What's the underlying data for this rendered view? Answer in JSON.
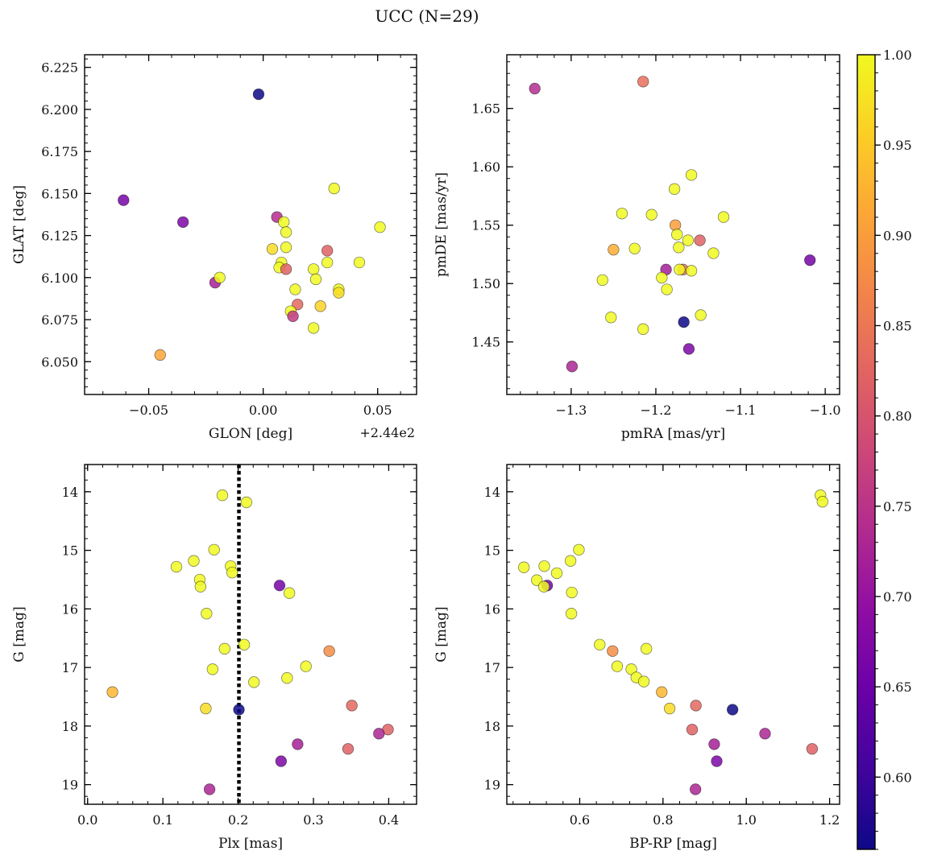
{
  "figure": {
    "title": "UCC (N=29)"
  },
  "chart_data": [
    {
      "type": "scatter",
      "panel": "top-left",
      "title": "",
      "xlabel": "GLON [deg]",
      "ylabel": "GLAT [deg]",
      "x_offset_label": "+2.44e2",
      "x_offset": 244.0,
      "xlim": [
        -0.078,
        0.067
      ],
      "ylim": [
        6.0305,
        6.2325
      ],
      "xticks": [
        -0.05,
        0.0,
        0.05
      ],
      "xtick_labels": [
        "−0.05",
        "0.00",
        "0.05"
      ],
      "yticks": [
        6.05,
        6.075,
        6.1,
        6.125,
        6.15,
        6.175,
        6.2,
        6.225
      ],
      "ytick_labels": [
        "6.050",
        "6.075",
        "6.100",
        "6.125",
        "6.150",
        "6.175",
        "6.200",
        "6.225"
      ],
      "y_inverted": false,
      "points": [
        {
          "x": -0.002,
          "y": 6.209,
          "c": 0.56
        },
        {
          "x": -0.061,
          "y": 6.146,
          "c": 0.66
        },
        {
          "x": -0.035,
          "y": 6.133,
          "c": 0.67
        },
        {
          "x": -0.021,
          "y": 6.097,
          "c": 0.72
        },
        {
          "x": -0.019,
          "y": 6.1,
          "c": 1.0
        },
        {
          "x": -0.045,
          "y": 6.054,
          "c": 0.91
        },
        {
          "x": 0.006,
          "y": 6.136,
          "c": 0.74
        },
        {
          "x": 0.009,
          "y": 6.133,
          "c": 1.0
        },
        {
          "x": 0.01,
          "y": 6.127,
          "c": 1.0
        },
        {
          "x": 0.004,
          "y": 6.117,
          "c": 0.97
        },
        {
          "x": 0.01,
          "y": 6.118,
          "c": 1.0
        },
        {
          "x": 0.008,
          "y": 6.109,
          "c": 1.0
        },
        {
          "x": 0.007,
          "y": 6.106,
          "c": 1.0
        },
        {
          "x": 0.01,
          "y": 6.105,
          "c": 0.82
        },
        {
          "x": 0.014,
          "y": 6.093,
          "c": 1.0
        },
        {
          "x": 0.015,
          "y": 6.084,
          "c": 0.83
        },
        {
          "x": 0.012,
          "y": 6.08,
          "c": 1.0
        },
        {
          "x": 0.013,
          "y": 6.077,
          "c": 0.76
        },
        {
          "x": 0.022,
          "y": 6.105,
          "c": 1.0
        },
        {
          "x": 0.023,
          "y": 6.099,
          "c": 1.0
        },
        {
          "x": 0.025,
          "y": 6.083,
          "c": 0.96
        },
        {
          "x": 0.022,
          "y": 6.07,
          "c": 1.0
        },
        {
          "x": 0.028,
          "y": 6.116,
          "c": 0.82
        },
        {
          "x": 0.028,
          "y": 6.109,
          "c": 1.0
        },
        {
          "x": 0.031,
          "y": 6.153,
          "c": 1.0
        },
        {
          "x": 0.033,
          "y": 6.093,
          "c": 1.0
        },
        {
          "x": 0.033,
          "y": 6.091,
          "c": 0.97
        },
        {
          "x": 0.042,
          "y": 6.109,
          "c": 1.0
        },
        {
          "x": 0.051,
          "y": 6.13,
          "c": 1.0
        }
      ]
    },
    {
      "type": "scatter",
      "panel": "top-right",
      "title": "",
      "xlabel": "pmRA [mas/yr]",
      "ylabel": "pmDE [mas/yr]",
      "xlim": [
        -1.376,
        -0.983
      ],
      "ylim": [
        1.405,
        1.696
      ],
      "xticks": [
        -1.3,
        -1.2,
        -1.1,
        -1.0
      ],
      "xtick_labels": [
        "−1.3",
        "−1.2",
        "−1.1",
        "−1.0"
      ],
      "yticks": [
        1.45,
        1.5,
        1.55,
        1.6,
        1.65
      ],
      "ytick_labels": [
        "1.45",
        "1.50",
        "1.55",
        "1.60",
        "1.65"
      ],
      "y_inverted": false,
      "points": [
        {
          "x": -1.343,
          "y": 1.667,
          "c": 0.74
        },
        {
          "x": -1.215,
          "y": 1.673,
          "c": 0.84
        },
        {
          "x": -1.158,
          "y": 1.593,
          "c": 1.0
        },
        {
          "x": -1.178,
          "y": 1.581,
          "c": 1.0
        },
        {
          "x": -1.24,
          "y": 1.56,
          "c": 1.0
        },
        {
          "x": -1.205,
          "y": 1.559,
          "c": 1.0
        },
        {
          "x": -1.12,
          "y": 1.557,
          "c": 1.0
        },
        {
          "x": -1.177,
          "y": 1.55,
          "c": 0.9
        },
        {
          "x": -1.175,
          "y": 1.542,
          "c": 1.0
        },
        {
          "x": -1.162,
          "y": 1.537,
          "c": 1.0
        },
        {
          "x": -1.148,
          "y": 1.537,
          "c": 0.82
        },
        {
          "x": -1.173,
          "y": 1.531,
          "c": 1.0
        },
        {
          "x": -1.225,
          "y": 1.53,
          "c": 1.0
        },
        {
          "x": -1.25,
          "y": 1.529,
          "c": 0.92
        },
        {
          "x": -1.132,
          "y": 1.526,
          "c": 1.0
        },
        {
          "x": -1.188,
          "y": 1.512,
          "c": 0.72
        },
        {
          "x": -1.168,
          "y": 1.512,
          "c": 0.84
        },
        {
          "x": -1.172,
          "y": 1.512,
          "c": 1.0
        },
        {
          "x": -1.158,
          "y": 1.511,
          "c": 1.0
        },
        {
          "x": -1.193,
          "y": 1.505,
          "c": 1.0
        },
        {
          "x": -1.263,
          "y": 1.503,
          "c": 1.0
        },
        {
          "x": -1.187,
          "y": 1.495,
          "c": 1.0
        },
        {
          "x": -1.018,
          "y": 1.52,
          "c": 0.66
        },
        {
          "x": -1.147,
          "y": 1.473,
          "c": 1.0
        },
        {
          "x": -1.253,
          "y": 1.471,
          "c": 1.0
        },
        {
          "x": -1.167,
          "y": 1.467,
          "c": 0.56
        },
        {
          "x": -1.215,
          "y": 1.461,
          "c": 1.0
        },
        {
          "x": -1.161,
          "y": 1.444,
          "c": 0.67
        },
        {
          "x": -1.299,
          "y": 1.429,
          "c": 0.73
        }
      ]
    },
    {
      "type": "scatter",
      "panel": "bottom-left",
      "title": "",
      "xlabel": "Plx [mas]",
      "ylabel": "G [mag]",
      "xlim": [
        -0.004,
        0.437
      ],
      "ylim": [
        19.335,
        13.535
      ],
      "xticks": [
        0.0,
        0.1,
        0.2,
        0.3,
        0.4
      ],
      "xtick_labels": [
        "0.0",
        "0.1",
        "0.2",
        "0.3",
        "0.4"
      ],
      "yticks": [
        14,
        15,
        16,
        17,
        18,
        19
      ],
      "ytick_labels": [
        "14",
        "15",
        "16",
        "17",
        "18",
        "19"
      ],
      "y_inverted": true,
      "vline": {
        "x": 0.201,
        "style": "dotted",
        "color": "#000000"
      },
      "points": [
        {
          "x": 0.179,
          "y": 14.06,
          "c": 1.0
        },
        {
          "x": 0.211,
          "y": 14.18,
          "c": 1.0
        },
        {
          "x": 0.168,
          "y": 14.99,
          "c": 1.0
        },
        {
          "x": 0.141,
          "y": 15.18,
          "c": 1.0
        },
        {
          "x": 0.118,
          "y": 15.28,
          "c": 1.0
        },
        {
          "x": 0.19,
          "y": 15.27,
          "c": 1.0
        },
        {
          "x": 0.192,
          "y": 15.38,
          "c": 1.0
        },
        {
          "x": 0.149,
          "y": 15.5,
          "c": 1.0
        },
        {
          "x": 0.15,
          "y": 15.62,
          "c": 1.0
        },
        {
          "x": 0.255,
          "y": 15.6,
          "c": 0.66
        },
        {
          "x": 0.268,
          "y": 15.73,
          "c": 1.0
        },
        {
          "x": 0.158,
          "y": 16.08,
          "c": 1.0
        },
        {
          "x": 0.208,
          "y": 16.61,
          "c": 1.0
        },
        {
          "x": 0.182,
          "y": 16.68,
          "c": 1.0
        },
        {
          "x": 0.321,
          "y": 16.72,
          "c": 0.88
        },
        {
          "x": 0.29,
          "y": 16.98,
          "c": 1.0
        },
        {
          "x": 0.166,
          "y": 17.03,
          "c": 1.0
        },
        {
          "x": 0.265,
          "y": 17.18,
          "c": 1.0
        },
        {
          "x": 0.221,
          "y": 17.25,
          "c": 1.0
        },
        {
          "x": 0.033,
          "y": 17.42,
          "c": 0.93
        },
        {
          "x": 0.351,
          "y": 17.65,
          "c": 0.83
        },
        {
          "x": 0.157,
          "y": 17.7,
          "c": 0.97
        },
        {
          "x": 0.201,
          "y": 17.72,
          "c": 0.56
        },
        {
          "x": 0.399,
          "y": 18.06,
          "c": 0.82
        },
        {
          "x": 0.387,
          "y": 18.13,
          "c": 0.73
        },
        {
          "x": 0.279,
          "y": 18.31,
          "c": 0.72
        },
        {
          "x": 0.346,
          "y": 18.39,
          "c": 0.82
        },
        {
          "x": 0.257,
          "y": 18.6,
          "c": 0.67
        },
        {
          "x": 0.162,
          "y": 19.08,
          "c": 0.73
        }
      ]
    },
    {
      "type": "scatter",
      "panel": "bottom-right",
      "title": "",
      "xlabel": "BP-RP [mag]",
      "ylabel": "G [mag]",
      "xlim": [
        0.425,
        1.224
      ],
      "ylim": [
        19.335,
        13.535
      ],
      "xticks": [
        0.6,
        0.8,
        1.0,
        1.2
      ],
      "xtick_labels": [
        "0.6",
        "0.8",
        "1.0",
        "1.2"
      ],
      "yticks": [
        14,
        15,
        16,
        17,
        18,
        19
      ],
      "ytick_labels": [
        "14",
        "15",
        "16",
        "17",
        "18",
        "19"
      ],
      "y_inverted": true,
      "points": [
        {
          "x": 1.178,
          "y": 14.06,
          "c": 1.0
        },
        {
          "x": 1.183,
          "y": 14.17,
          "c": 1.0
        },
        {
          "x": 0.598,
          "y": 14.99,
          "c": 1.0
        },
        {
          "x": 0.578,
          "y": 15.18,
          "c": 1.0
        },
        {
          "x": 0.515,
          "y": 15.27,
          "c": 1.0
        },
        {
          "x": 0.466,
          "y": 15.29,
          "c": 1.0
        },
        {
          "x": 0.545,
          "y": 15.39,
          "c": 1.0
        },
        {
          "x": 0.497,
          "y": 15.51,
          "c": 1.0
        },
        {
          "x": 0.522,
          "y": 15.6,
          "c": 0.66
        },
        {
          "x": 0.514,
          "y": 15.62,
          "c": 1.0
        },
        {
          "x": 0.581,
          "y": 15.72,
          "c": 1.0
        },
        {
          "x": 0.58,
          "y": 16.08,
          "c": 1.0
        },
        {
          "x": 0.648,
          "y": 16.61,
          "c": 1.0
        },
        {
          "x": 0.76,
          "y": 16.68,
          "c": 1.0
        },
        {
          "x": 0.679,
          "y": 16.72,
          "c": 0.88
        },
        {
          "x": 0.69,
          "y": 16.98,
          "c": 1.0
        },
        {
          "x": 0.724,
          "y": 17.03,
          "c": 1.0
        },
        {
          "x": 0.736,
          "y": 17.17,
          "c": 1.0
        },
        {
          "x": 0.754,
          "y": 17.24,
          "c": 1.0
        },
        {
          "x": 0.797,
          "y": 17.42,
          "c": 0.93
        },
        {
          "x": 0.879,
          "y": 17.65,
          "c": 0.83
        },
        {
          "x": 0.816,
          "y": 17.7,
          "c": 0.97
        },
        {
          "x": 0.967,
          "y": 17.72,
          "c": 0.56
        },
        {
          "x": 0.87,
          "y": 18.06,
          "c": 0.82
        },
        {
          "x": 1.045,
          "y": 18.13,
          "c": 0.73
        },
        {
          "x": 0.923,
          "y": 18.31,
          "c": 0.72
        },
        {
          "x": 1.158,
          "y": 18.39,
          "c": 0.82
        },
        {
          "x": 0.929,
          "y": 18.6,
          "c": 0.67
        },
        {
          "x": 0.878,
          "y": 19.08,
          "c": 0.73
        }
      ]
    }
  ],
  "colorbar": {
    "colormap": "plasma",
    "range": [
      0.56,
      1.0
    ],
    "ticks": [
      0.6,
      0.65,
      0.7,
      0.75,
      0.8,
      0.85,
      0.9,
      0.95,
      1.0
    ],
    "tick_labels": [
      "0.60",
      "0.65",
      "0.70",
      "0.75",
      "0.80",
      "0.85",
      "0.90",
      "0.95",
      "1.00"
    ],
    "marker_edge_color": "#555555",
    "vline_color": "#000000",
    "colormap_stops": [
      [
        0.0,
        "#0d0887"
      ],
      [
        0.1,
        "#41049d"
      ],
      [
        0.2,
        "#6a00a8"
      ],
      [
        0.3,
        "#8f0da4"
      ],
      [
        0.4,
        "#b12a90"
      ],
      [
        0.5,
        "#cc4778"
      ],
      [
        0.6,
        "#e16462"
      ],
      [
        0.7,
        "#f2844b"
      ],
      [
        0.8,
        "#fca636"
      ],
      [
        0.9,
        "#fcce25"
      ],
      [
        1.0,
        "#f0f921"
      ]
    ]
  }
}
